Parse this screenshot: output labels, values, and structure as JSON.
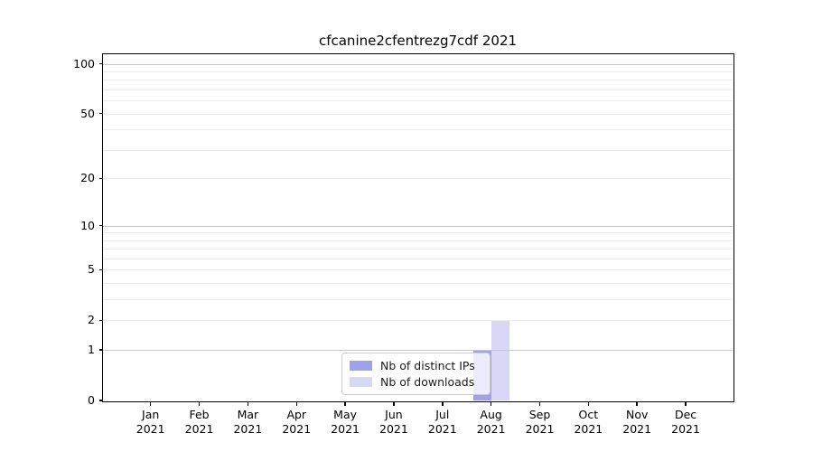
{
  "chart_data": {
    "type": "bar",
    "title": "cfcanine2cfentrezg7cdf 2021",
    "categories": [
      "Jan",
      "Feb",
      "Mar",
      "Apr",
      "May",
      "Jun",
      "Jul",
      "Aug",
      "Sep",
      "Oct",
      "Nov",
      "Dec"
    ],
    "year": "2021",
    "series": [
      {
        "name": "Nb of distinct IPs",
        "color": "#a0a0ee",
        "values": [
          0,
          0,
          0,
          0,
          0,
          0,
          0,
          1,
          0,
          0,
          0,
          0
        ]
      },
      {
        "name": "Nb of downloads",
        "color": "#d8d8f6",
        "values": [
          0,
          0,
          0,
          0,
          0,
          0,
          0,
          2,
          0,
          0,
          0,
          0
        ]
      }
    ],
    "xlabel": "",
    "ylabel": "",
    "y_scale": "log10(value+1)",
    "ylim": [
      0,
      113
    ],
    "y_ticks": [
      0,
      1,
      2,
      5,
      10,
      20,
      50,
      100
    ],
    "y_major_gridlines": [
      1,
      10,
      100
    ],
    "y_minor_gridlines": [
      2,
      3,
      4,
      5,
      6,
      7,
      8,
      9,
      20,
      30,
      40,
      50,
      60,
      70,
      80,
      90
    ],
    "grid": "horizontal only",
    "legend_position": "lower center inside plot",
    "colors": {
      "major_grid": "#c8c8c8",
      "minor_grid": "#ececec",
      "spine": "#000000",
      "background": "#ffffff"
    }
  }
}
